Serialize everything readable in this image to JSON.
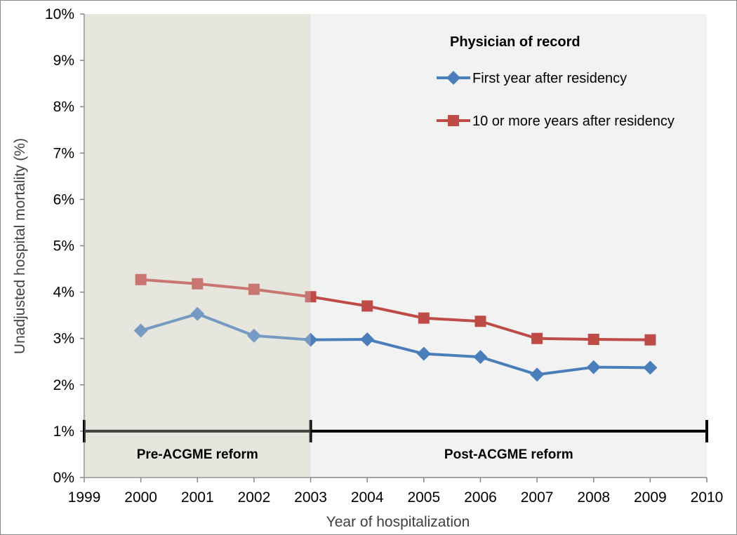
{
  "chart_data": {
    "type": "line",
    "xlabel": "Year of hospitalization",
    "ylabel": "Unadjusted hospital mortality (%)",
    "xlim": [
      1999,
      2010
    ],
    "ylim": [
      0,
      10
    ],
    "x_ticks": [
      "1999",
      "2000",
      "2001",
      "2002",
      "2003",
      "2004",
      "2005",
      "2006",
      "2007",
      "2008",
      "2009",
      "2010"
    ],
    "y_ticks": [
      "0%",
      "1%",
      "2%",
      "3%",
      "4%",
      "5%",
      "6%",
      "7%",
      "8%",
      "9%",
      "10%"
    ],
    "legend_title": "Physician of record",
    "series": [
      {
        "name": "First year after residency",
        "color": "#4a7ebb",
        "marker": "diamond",
        "x": [
          2000,
          2001,
          2002,
          2003,
          2004,
          2005,
          2006,
          2007,
          2008,
          2009
        ],
        "values": [
          3.17,
          3.53,
          3.06,
          2.97,
          2.98,
          2.67,
          2.6,
          2.22,
          2.38,
          2.37
        ]
      },
      {
        "name": "10 or more years after residency",
        "color": "#be4b48",
        "marker": "square",
        "x": [
          2000,
          2001,
          2002,
          2003,
          2004,
          2005,
          2006,
          2007,
          2008,
          2009
        ],
        "values": [
          4.27,
          4.18,
          4.06,
          3.9,
          3.7,
          3.44,
          3.37,
          3.0,
          2.98,
          2.97
        ]
      }
    ],
    "regions": [
      {
        "label": "Pre-ACGME reform",
        "from": 1999,
        "to": 2003,
        "color": "#e6e5de"
      },
      {
        "label": "Post-ACGME reform",
        "from": 2003,
        "to": 2010,
        "color": "#f2f2f2"
      }
    ],
    "timeline": {
      "y": 1,
      "ticks": [
        1999,
        2003,
        2010
      ]
    }
  }
}
